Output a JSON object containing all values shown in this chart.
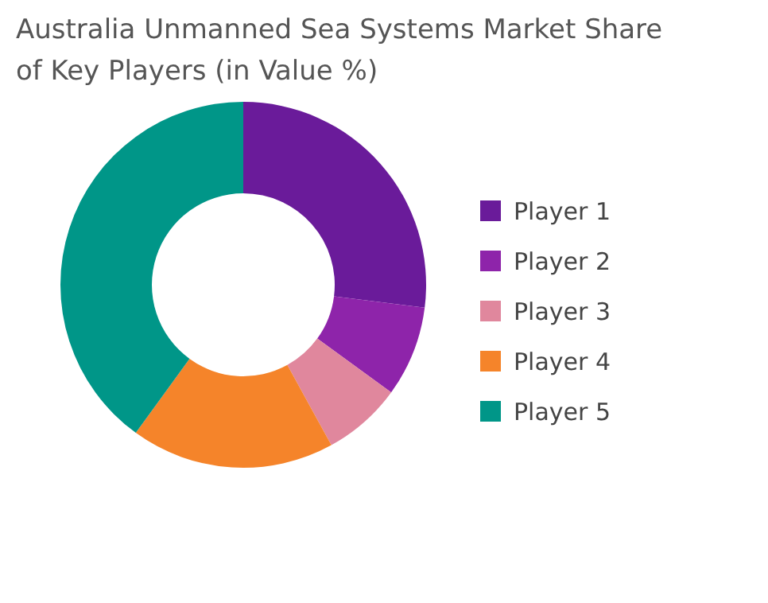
{
  "chart_data": {
    "type": "donut",
    "title": "Australia Unmanned Sea Systems Market Share of Key Players (in Value %)",
    "categories": [
      "Player 1",
      "Player 2",
      "Player 3",
      "Player 4",
      "Player 5"
    ],
    "values": [
      27,
      8,
      7,
      18,
      40
    ],
    "colors": [
      "#6a1b9a",
      "#8e24aa",
      "#e0879d",
      "#f5842a",
      "#009688"
    ],
    "legend": "right"
  }
}
